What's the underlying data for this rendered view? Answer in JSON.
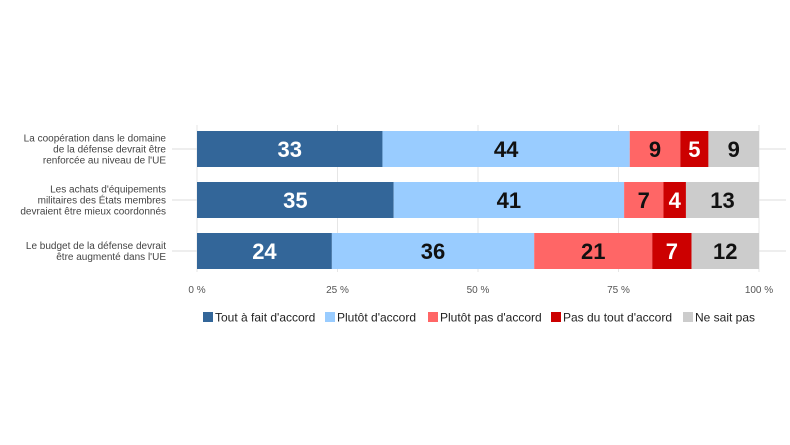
{
  "chart_data": {
    "type": "bar",
    "orientation": "horizontal",
    "stacked": true,
    "title": "",
    "xlabel": "",
    "ylabel": "",
    "xlim": [
      0,
      100
    ],
    "x_ticks": [
      "0 %",
      "25 %",
      "50 %",
      "75 %",
      "100 %"
    ],
    "x_tick_values": [
      0,
      25,
      50,
      75,
      100
    ],
    "grid": true,
    "legend_position": "bottom",
    "categories": [
      [
        "La coopération dans le domaine",
        "de la défense devrait être",
        "renforcée au niveau de l'UE"
      ],
      [
        "Les achats d'équipements",
        "militaires des États membres",
        "devraient être mieux coordonnés"
      ],
      [
        "Le budget de la défense devrait",
        "être augmenté dans l'UE"
      ]
    ],
    "series": [
      {
        "name": "Tout à fait d'accord",
        "color": "#336699",
        "label_color": "#ffffff",
        "values": [
          33,
          35,
          24
        ]
      },
      {
        "name": "Plutôt d'accord",
        "color": "#99ccff",
        "label_color": "#111111",
        "values": [
          44,
          41,
          36
        ]
      },
      {
        "name": "Plutôt pas d'accord",
        "color": "#ff6666",
        "label_color": "#111111",
        "values": [
          9,
          7,
          21
        ]
      },
      {
        "name": "Pas du tout d'accord",
        "color": "#cc0000",
        "label_color": "#ffffff",
        "values": [
          5,
          4,
          7
        ]
      },
      {
        "name": "Ne sait pas",
        "color": "#cccccc",
        "label_color": "#111111",
        "values": [
          9,
          13,
          12
        ]
      }
    ]
  }
}
